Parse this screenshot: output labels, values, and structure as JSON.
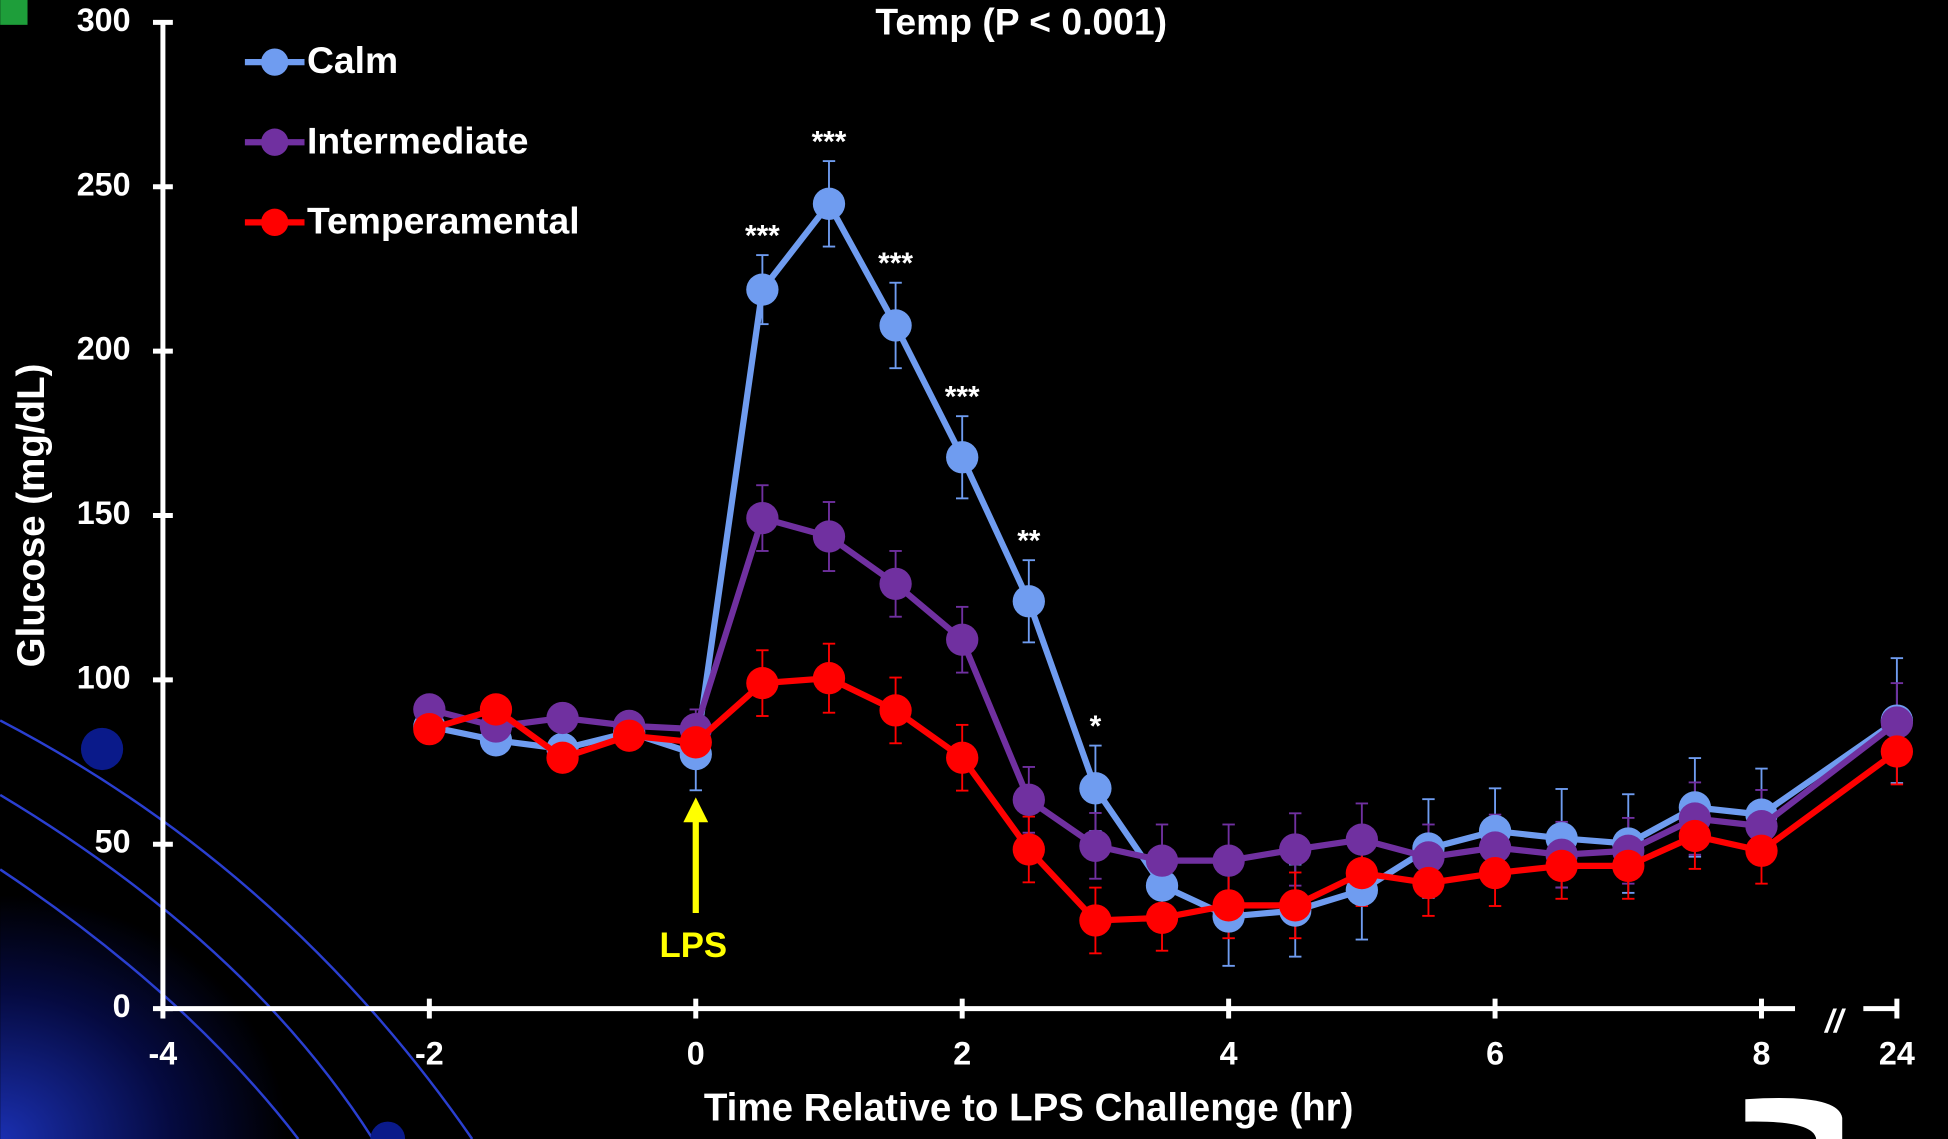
{
  "chart_data": {
    "type": "line",
    "title": "Temp (P < 0.001)",
    "x_label": "Time Relative to LPS Challenge (hr)",
    "y_label": "Glucose (mg/dL)",
    "x": [
      -2,
      -1.5,
      -1,
      -0.5,
      0,
      0.5,
      1,
      1.5,
      2,
      2.5,
      3,
      3.5,
      4,
      4.5,
      5,
      5.5,
      6,
      6.5,
      7,
      7.5,
      8,
      24
    ],
    "series": [
      {
        "name": "Calm",
        "color": "#6f9cf0",
        "values": [
          85.8,
          81.6,
          79,
          84,
          77.4,
          218.7,
          244.8,
          207.8,
          167.7,
          123.9,
          67,
          37.4,
          28,
          29.8,
          36,
          48.7,
          54,
          51.8,
          50.2,
          61.2,
          59,
          87.6
        ],
        "errors": [
          4,
          4,
          4,
          4,
          11,
          10.5,
          13,
          13,
          12.5,
          12.5,
          13,
          8,
          15,
          14,
          15,
          15,
          13,
          15,
          15,
          15,
          14,
          19
        ]
      },
      {
        "name": "Intermediate",
        "color": "#7030a0",
        "values": [
          91,
          85.8,
          88.4,
          86,
          85,
          149.2,
          143.6,
          129.2,
          112.2,
          63.5,
          49.5,
          45,
          45,
          48.4,
          51.4,
          46,
          49,
          46.8,
          48,
          57.8,
          55.5,
          87
        ],
        "errors": [
          4,
          4,
          4,
          4,
          6,
          10,
          10.5,
          10,
          10,
          10,
          10,
          11,
          11,
          11,
          11,
          10,
          10,
          10,
          10,
          11,
          11,
          12
        ]
      },
      {
        "name": "Temperamental",
        "color": "#ff0000",
        "values": [
          85,
          91,
          76.3,
          83,
          81,
          99,
          100.5,
          90.7,
          76.3,
          48.4,
          26.8,
          27.6,
          31.4,
          31.4,
          41.2,
          38.2,
          41.2,
          43.4,
          43.4,
          52.5,
          48,
          78.2
        ],
        "errors": [
          4,
          4,
          4,
          4,
          5,
          10,
          10.5,
          10,
          10,
          10,
          10,
          10,
          10,
          10,
          10,
          10,
          10,
          10,
          10,
          10,
          10,
          10
        ]
      }
    ],
    "significance": [
      null,
      null,
      null,
      null,
      null,
      "***",
      "***",
      "***",
      "***",
      "**",
      "*",
      null,
      null,
      null,
      null,
      null,
      null,
      null,
      null,
      null,
      null,
      null
    ],
    "annotations": [
      {
        "text": "LPS",
        "x": 0
      }
    ],
    "xlim": [
      -4,
      24
    ],
    "xticks": [
      -4,
      -2,
      0,
      2,
      4,
      6,
      8,
      24
    ],
    "x_break_after": 8,
    "x_break_label": "//",
    "ylim": [
      0,
      300
    ],
    "yticks": [
      0,
      50,
      100,
      150,
      200,
      250,
      300
    ],
    "legend": "top-left",
    "grid": false
  }
}
